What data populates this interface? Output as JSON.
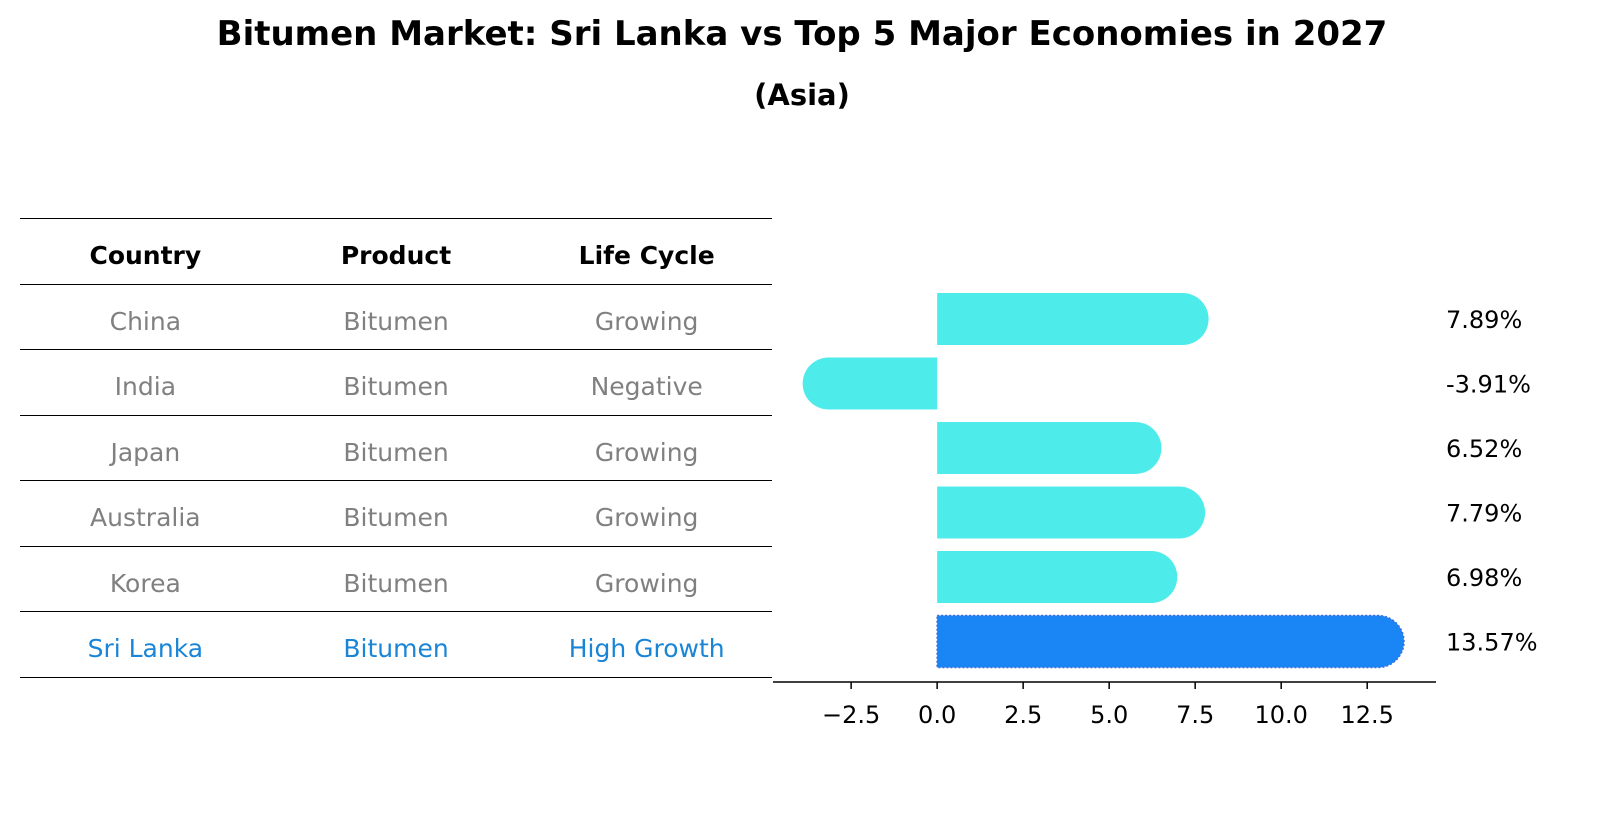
{
  "title": "Bitumen Market: Sri Lanka vs Top 5 Major Economies in 2027",
  "subtitle": "(Asia)",
  "colors": {
    "normal_bar": "#4deceb",
    "highlight_bar": "#1a85f5",
    "normal_text": "#808080",
    "highlight_text": "#1a85d6"
  },
  "table": {
    "headers": [
      "Country",
      "Product",
      "Life Cycle"
    ],
    "rows": [
      {
        "country": "China",
        "product": "Bitumen",
        "life_cycle": "Growing",
        "highlight": false
      },
      {
        "country": "India",
        "product": "Bitumen",
        "life_cycle": "Negative",
        "highlight": false
      },
      {
        "country": "Japan",
        "product": "Bitumen",
        "life_cycle": "Growing",
        "highlight": false
      },
      {
        "country": "Australia",
        "product": "Bitumen",
        "life_cycle": "Growing",
        "highlight": false
      },
      {
        "country": "Korea",
        "product": "Bitumen",
        "life_cycle": "Growing",
        "highlight": false
      },
      {
        "country": "Sri Lanka",
        "product": "Bitumen",
        "life_cycle": "High Growth",
        "highlight": true
      }
    ]
  },
  "chart_data": {
    "type": "bar",
    "orientation": "horizontal",
    "categories": [
      "China",
      "India",
      "Japan",
      "Australia",
      "Korea",
      "Sri Lanka"
    ],
    "values": [
      7.89,
      -3.91,
      6.52,
      7.79,
      6.98,
      13.57
    ],
    "value_labels": [
      "7.89%",
      "-3.91%",
      "6.52%",
      "7.79%",
      "6.98%",
      "13.57%"
    ],
    "highlight_index": 5,
    "xlim": [
      -4.8,
      14.5
    ],
    "xticks": [
      -2.5,
      0.0,
      2.5,
      5.0,
      7.5,
      10.0,
      12.5
    ],
    "xtick_labels": [
      "−2.5",
      "0.0",
      "2.5",
      "5.0",
      "7.5",
      "10.0",
      "12.5"
    ],
    "xlabel": "",
    "ylabel": "",
    "grid": false,
    "legend": "none"
  }
}
